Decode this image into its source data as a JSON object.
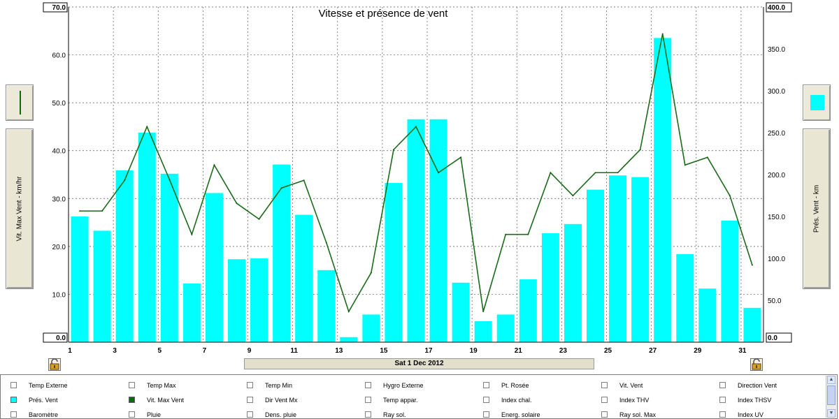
{
  "chart_data": {
    "type": "bar",
    "title": "Vitesse et présence de vent",
    "date_label": "Sat 1 Dec 2012",
    "x_tick_labels": [
      "1",
      "3",
      "5",
      "7",
      "9",
      "11",
      "13",
      "15",
      "17",
      "19",
      "21",
      "23",
      "25",
      "27",
      "29",
      "31"
    ],
    "days": [
      1,
      2,
      3,
      4,
      5,
      6,
      7,
      8,
      9,
      10,
      11,
      12,
      13,
      14,
      15,
      16,
      17,
      18,
      19,
      20,
      21,
      22,
      23,
      24,
      25,
      26,
      27,
      28,
      29,
      30,
      31
    ],
    "left_axis": {
      "label": "Vit. Max Vent - km/hr",
      "range": [
        0,
        70
      ],
      "ticks": [
        "0.0",
        "10.0",
        "20.0",
        "30.0",
        "40.0",
        "50.0",
        "60.0",
        "70.0"
      ]
    },
    "right_axis": {
      "label": "Prés. Vent - km",
      "range": [
        0,
        400
      ],
      "ticks": [
        "0.0",
        "50.0",
        "100.0",
        "150.0",
        "200.0",
        "250.0",
        "300.0",
        "350.0",
        "400.0"
      ]
    },
    "grid": true,
    "series": [
      {
        "name": "Prés. Vent",
        "type": "bar",
        "axis": "right",
        "color": "#00ffff",
        "values": [
          150,
          133,
          205,
          250,
          201,
          70,
          178,
          99,
          100,
          212,
          152,
          86,
          6,
          33,
          190,
          266,
          266,
          71,
          25,
          33,
          75,
          130,
          141,
          182,
          199,
          197,
          363,
          105,
          64,
          145,
          41
        ]
      },
      {
        "name": "Vit. Max Vent",
        "type": "line",
        "axis": "left",
        "color": "#1a6b1a",
        "values": [
          27.4,
          27.4,
          33.8,
          45.0,
          34.0,
          22.5,
          37.0,
          29.0,
          25.7,
          32.2,
          33.8,
          20.8,
          6.4,
          14.5,
          40.2,
          45.0,
          35.4,
          38.6,
          6.4,
          22.5,
          22.5,
          35.4,
          30.6,
          35.4,
          35.4,
          40.2,
          64.4,
          37.0,
          38.6,
          30.6,
          16.1
        ]
      }
    ]
  },
  "left_button_icon": "green-line-icon",
  "right_button_icon": "cyan-square-icon",
  "lock_icon": "padlock-icon",
  "legend": {
    "items": [
      {
        "label": "Temp Externe",
        "checked": false,
        "color": ""
      },
      {
        "label": "Temp Max",
        "checked": false,
        "color": ""
      },
      {
        "label": "Temp Min",
        "checked": false,
        "color": ""
      },
      {
        "label": "Hygro Externe",
        "checked": false,
        "color": ""
      },
      {
        "label": "Pt. Rosée",
        "checked": false,
        "color": ""
      },
      {
        "label": "Vit. Vent",
        "checked": false,
        "color": ""
      },
      {
        "label": "Direction Vent",
        "checked": false,
        "color": ""
      },
      {
        "label": "Prés. Vent",
        "checked": true,
        "color": "#00ffff"
      },
      {
        "label": "Vit. Max Vent",
        "checked": true,
        "color": "#0a6b0a"
      },
      {
        "label": "Dir Vent Mx",
        "checked": false,
        "color": ""
      },
      {
        "label": "Temp appar.",
        "checked": false,
        "color": ""
      },
      {
        "label": "Index chal.",
        "checked": false,
        "color": ""
      },
      {
        "label": "Index THV",
        "checked": false,
        "color": ""
      },
      {
        "label": "Index THSV",
        "checked": false,
        "color": ""
      },
      {
        "label": "Baromètre",
        "checked": false,
        "color": ""
      },
      {
        "label": "Pluie",
        "checked": false,
        "color": ""
      },
      {
        "label": "Dens. pluie",
        "checked": false,
        "color": ""
      },
      {
        "label": "Ray sol.",
        "checked": false,
        "color": ""
      },
      {
        "label": "Energ. solaire",
        "checked": false,
        "color": ""
      },
      {
        "label": "Ray sol. Max",
        "checked": false,
        "color": ""
      },
      {
        "label": "Index UV",
        "checked": false,
        "color": ""
      }
    ]
  }
}
